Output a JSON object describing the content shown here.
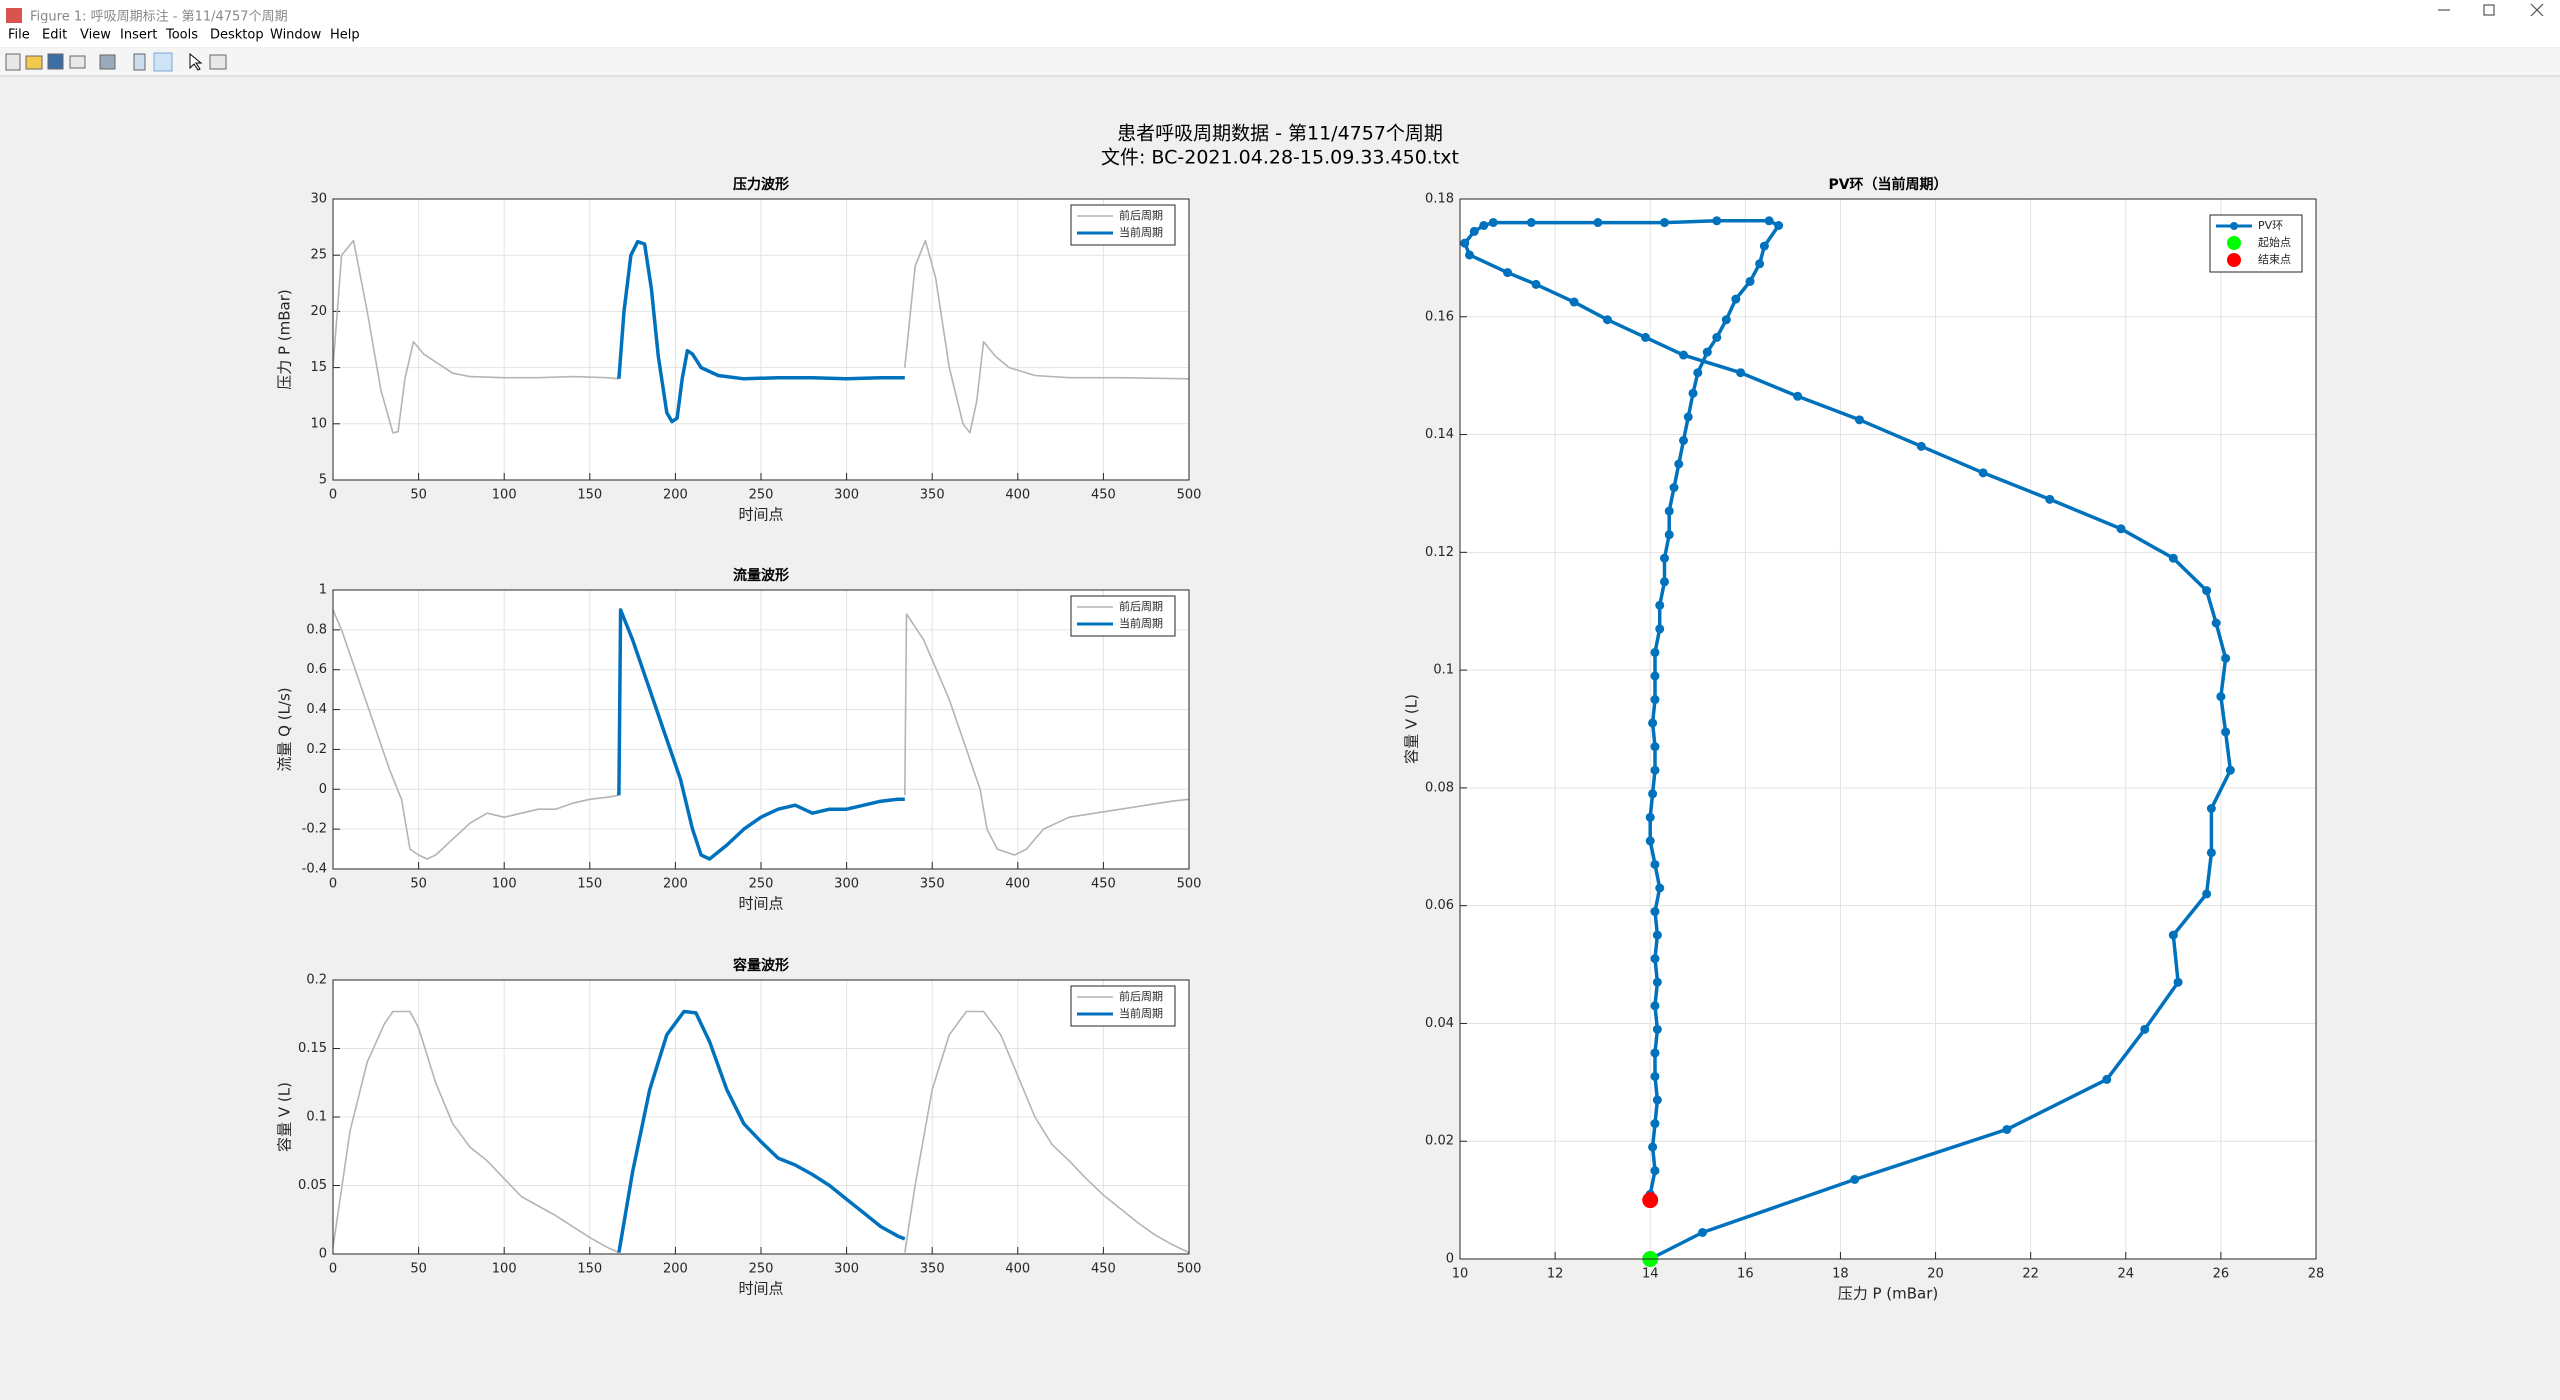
{
  "window": {
    "title": "Figure 1: 呼吸周期标注 - 第11/4757个周期",
    "menu": [
      "File",
      "Edit",
      "View",
      "Insert",
      "Tools",
      "Desktop",
      "Window",
      "Help"
    ]
  },
  "figure": {
    "title_lines": [
      "患者呼吸周期数据 - 第11/4757个周期",
      "文件: BC-2021.04.28-15.09.33.450.txt"
    ]
  },
  "chart_data": [
    {
      "type": "line",
      "title": "压力波形",
      "xlabel": "时间点",
      "ylabel": "压力 P (mBar)",
      "xlim": [
        0,
        500
      ],
      "ylim": [
        5,
        30
      ],
      "xticks": [
        0,
        50,
        100,
        150,
        200,
        250,
        300,
        350,
        400,
        450,
        500
      ],
      "yticks": [
        5,
        10,
        15,
        20,
        25,
        30
      ],
      "grid": true,
      "legend": "northeast",
      "series": [
        {
          "name": "前后周期",
          "color": "#b4b4b4",
          "style": "line",
          "x": [
            0,
            5,
            12,
            20,
            28,
            35,
            38,
            42,
            47,
            53,
            60,
            70,
            80,
            100,
            120,
            140,
            160,
            167,
            250,
            334,
            340,
            346,
            352,
            360,
            368,
            372,
            376,
            380,
            387,
            395,
            410,
            430,
            460,
            500
          ],
          "values": [
            15,
            25,
            26.3,
            20,
            13,
            9.2,
            9.3,
            14,
            17.3,
            16.2,
            15.5,
            14.5,
            14.2,
            14.1,
            14.1,
            14.2,
            14.1,
            14,
            null,
            15,
            24,
            26.3,
            23,
            15,
            10,
            9.2,
            12,
            17.3,
            16,
            15,
            14.3,
            14.1,
            14.1,
            14
          ]
        },
        {
          "name": "当前周期",
          "color": "#0072bd",
          "style": "line",
          "x": [
            167,
            170,
            174,
            178,
            182,
            186,
            190,
            195,
            198,
            201,
            204,
            207,
            210,
            215,
            225,
            240,
            260,
            280,
            300,
            320,
            334
          ],
          "values": [
            14,
            20,
            25,
            26.2,
            26,
            22,
            16,
            11,
            10.2,
            10.5,
            14,
            16.5,
            16.2,
            15,
            14.3,
            14,
            14.1,
            14.1,
            14,
            14.1,
            14.1
          ]
        }
      ]
    },
    {
      "type": "line",
      "title": "流量波形",
      "xlabel": "时间点",
      "ylabel": "流量 Q (L/s)",
      "xlim": [
        0,
        500
      ],
      "ylim": [
        -0.4,
        1
      ],
      "xticks": [
        0,
        50,
        100,
        150,
        200,
        250,
        300,
        350,
        400,
        450,
        500
      ],
      "yticks": [
        -0.4,
        -0.2,
        0,
        0.2,
        0.4,
        0.6,
        0.8,
        1
      ],
      "grid": true,
      "legend": "northeast",
      "series": [
        {
          "name": "前后周期",
          "color": "#b4b4b4",
          "style": "line",
          "x": [
            0,
            5,
            15,
            25,
            33,
            40,
            45,
            50,
            55,
            60,
            70,
            80,
            90,
            100,
            110,
            120,
            130,
            140,
            150,
            160,
            167,
            250,
            334,
            335,
            345,
            360,
            370,
            378,
            382,
            388,
            398,
            405,
            415,
            430,
            445,
            460,
            475,
            490,
            500
          ],
          "values": [
            0.9,
            0.8,
            0.55,
            0.3,
            0.1,
            -0.05,
            -0.3,
            -0.33,
            -0.35,
            -0.33,
            -0.25,
            -0.17,
            -0.12,
            -0.14,
            -0.12,
            -0.1,
            -0.1,
            -0.07,
            -0.05,
            -0.04,
            -0.03,
            null,
            -0.03,
            0.88,
            0.75,
            0.45,
            0.2,
            0,
            -0.2,
            -0.3,
            -0.33,
            -0.3,
            -0.2,
            -0.14,
            -0.12,
            -0.1,
            -0.08,
            -0.06,
            -0.05
          ]
        },
        {
          "name": "当前周期",
          "color": "#0072bd",
          "style": "line",
          "x": [
            167,
            168,
            175,
            185,
            195,
            203,
            210,
            215,
            220,
            230,
            240,
            250,
            260,
            270,
            280,
            290,
            300,
            310,
            320,
            330,
            334
          ],
          "values": [
            -0.03,
            0.9,
            0.75,
            0.5,
            0.25,
            0.05,
            -0.2,
            -0.33,
            -0.35,
            -0.28,
            -0.2,
            -0.14,
            -0.1,
            -0.08,
            -0.12,
            -0.1,
            -0.1,
            -0.08,
            -0.06,
            -0.05,
            -0.05
          ]
        }
      ]
    },
    {
      "type": "line",
      "title": "容量波形",
      "xlabel": "时间点",
      "ylabel": "容量 V (L)",
      "xlim": [
        0,
        500
      ],
      "ylim": [
        0,
        0.2
      ],
      "xticks": [
        0,
        50,
        100,
        150,
        200,
        250,
        300,
        350,
        400,
        450,
        500
      ],
      "yticks": [
        0,
        0.05,
        0.1,
        0.15,
        0.2
      ],
      "grid": true,
      "legend": "northeast",
      "series": [
        {
          "name": "前后周期",
          "color": "#b4b4b4",
          "style": "line",
          "x": [
            0,
            10,
            20,
            30,
            35,
            45,
            50,
            60,
            70,
            80,
            90,
            100,
            110,
            120,
            130,
            140,
            150,
            160,
            167,
            250,
            334,
            340,
            350,
            360,
            370,
            380,
            390,
            400,
            410,
            420,
            430,
            440,
            450,
            460,
            470,
            480,
            490,
            500
          ],
          "values": [
            0.005,
            0.09,
            0.14,
            0.168,
            0.177,
            0.177,
            0.165,
            0.125,
            0.095,
            0.078,
            0.068,
            0.055,
            0.042,
            0.035,
            0.028,
            0.02,
            0.012,
            0.005,
            0.001,
            null,
            0.001,
            0.05,
            0.12,
            0.16,
            0.177,
            0.177,
            0.16,
            0.13,
            0.1,
            0.08,
            0.068,
            0.055,
            0.043,
            0.033,
            0.023,
            0.014,
            0.007,
            0.001
          ]
        },
        {
          "name": "当前周期",
          "color": "#0072bd",
          "style": "line",
          "x": [
            167,
            175,
            185,
            195,
            205,
            212,
            220,
            230,
            240,
            250,
            260,
            270,
            280,
            290,
            300,
            310,
            320,
            330,
            334
          ],
          "values": [
            0.001,
            0.06,
            0.12,
            0.16,
            0.177,
            0.176,
            0.155,
            0.12,
            0.095,
            0.082,
            0.07,
            0.065,
            0.058,
            0.05,
            0.04,
            0.03,
            0.02,
            0.013,
            0.011
          ]
        }
      ]
    },
    {
      "type": "line",
      "title": "PV环（当前周期）",
      "xlabel": "压力 P (mBar)",
      "ylabel": "容量 V (L)",
      "xlim": [
        10,
        28
      ],
      "ylim": [
        0,
        0.18
      ],
      "xticks": [
        10,
        12,
        14,
        16,
        18,
        20,
        22,
        24,
        26,
        28
      ],
      "yticks": [
        0,
        0.02,
        0.04,
        0.06,
        0.08,
        0.1,
        0.12,
        0.14,
        0.16,
        0.18
      ],
      "grid": true,
      "legend": "northeast",
      "series": [
        {
          "name": "PV环",
          "color": "#0072bd",
          "style": "line-markers",
          "x": [
            14.0,
            15.1,
            18.3,
            21.5,
            23.6,
            24.4,
            25.1,
            25.0,
            25.7,
            25.8,
            25.8,
            26.2,
            26.1,
            26.0,
            26.1,
            25.9,
            25.7,
            25.0,
            23.9,
            22.4,
            21.0,
            19.7,
            18.4,
            17.1,
            15.9,
            14.7,
            13.9,
            13.1,
            12.4,
            11.6,
            11.0,
            10.2,
            10.1,
            10.3,
            10.5,
            10.7,
            11.5,
            12.9,
            14.3,
            15.4,
            16.5,
            16.7,
            16.4,
            16.3,
            16.1,
            15.8,
            15.6,
            15.4,
            15.2,
            15.0,
            14.9,
            14.8,
            14.7,
            14.6,
            14.5,
            14.4,
            14.4,
            14.3,
            14.3,
            14.2,
            14.2,
            14.1,
            14.1,
            14.1,
            14.05,
            14.1,
            14.1,
            14.05,
            14.0,
            14.0,
            14.1,
            14.2,
            14.1,
            14.15,
            14.1,
            14.15,
            14.1,
            14.15,
            14.1,
            14.1,
            14.15,
            14.1,
            14.05,
            14.1,
            14.0,
            14.0
          ],
          "values": [
            0,
            0.0045,
            0.0135,
            0.022,
            0.0305,
            0.039,
            0.047,
            0.055,
            0.062,
            0.069,
            0.0765,
            0.083,
            0.0895,
            0.0955,
            0.102,
            0.108,
            0.1135,
            0.119,
            0.124,
            0.129,
            0.1335,
            0.138,
            0.1425,
            0.1465,
            0.1505,
            0.1535,
            0.1565,
            0.1595,
            0.1625,
            0.1655,
            0.1675,
            0.1705,
            0.1725,
            0.1745,
            0.1755,
            0.176,
            0.176,
            0.176,
            0.176,
            0.1763,
            0.1763,
            0.1755,
            0.172,
            0.169,
            0.166,
            0.163,
            0.1595,
            0.1565,
            0.154,
            0.1505,
            0.147,
            0.143,
            0.139,
            0.135,
            0.131,
            0.127,
            0.123,
            0.119,
            0.115,
            0.111,
            0.107,
            0.103,
            0.099,
            0.095,
            0.091,
            0.087,
            0.083,
            0.079,
            0.075,
            0.071,
            0.067,
            0.063,
            0.059,
            0.055,
            0.051,
            0.047,
            0.043,
            0.039,
            0.035,
            0.031,
            0.027,
            0.023,
            0.019,
            0.015,
            0.011,
            0.01
          ]
        },
        {
          "name": "起始点",
          "color": "#00ff00",
          "style": "marker",
          "x": [
            14.0
          ],
          "values": [
            0
          ]
        },
        {
          "name": "结束点",
          "color": "#ff0000",
          "style": "marker",
          "x": [
            14.0
          ],
          "values": [
            0.01
          ]
        }
      ]
    }
  ]
}
